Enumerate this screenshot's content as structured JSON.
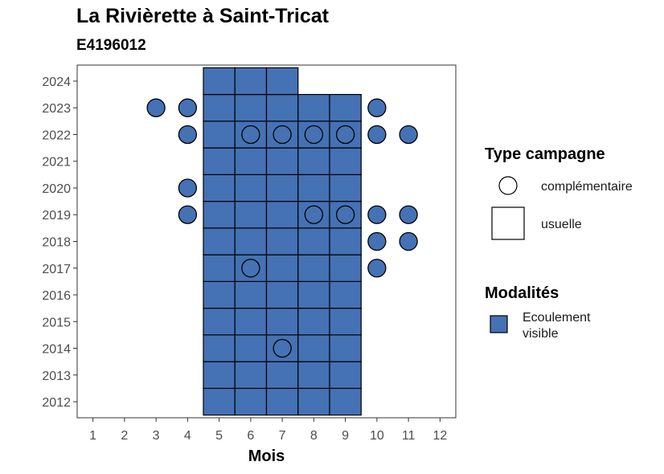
{
  "chart_data": {
    "type": "heatmap",
    "title": "La Rivièrette à Saint-Tricat",
    "subtitle": "E4196012",
    "xlabel": "Mois",
    "ylabel": "",
    "x_ticks": [
      1,
      2,
      3,
      4,
      5,
      6,
      7,
      8,
      9,
      10,
      11,
      12
    ],
    "y_ticks": [
      2012,
      2013,
      2014,
      2015,
      2016,
      2017,
      2018,
      2019,
      2020,
      2021,
      2022,
      2023,
      2024
    ],
    "xlim": [
      0.5,
      12.5
    ],
    "ylim": [
      2011.4,
      2024.6
    ],
    "color_fill": "#4472b4",
    "usuelle": [
      {
        "year": 2012,
        "months": [
          5,
          6,
          7,
          8,
          9
        ]
      },
      {
        "year": 2013,
        "months": [
          5,
          6,
          7,
          8,
          9
        ]
      },
      {
        "year": 2014,
        "months": [
          5,
          6,
          7,
          8,
          9
        ]
      },
      {
        "year": 2015,
        "months": [
          5,
          6,
          7,
          8,
          9
        ]
      },
      {
        "year": 2016,
        "months": [
          5,
          6,
          7,
          8,
          9
        ]
      },
      {
        "year": 2017,
        "months": [
          5,
          6,
          7,
          8,
          9
        ]
      },
      {
        "year": 2018,
        "months": [
          5,
          6,
          7,
          8,
          9
        ]
      },
      {
        "year": 2019,
        "months": [
          5,
          6,
          7,
          8,
          9
        ]
      },
      {
        "year": 2020,
        "months": [
          5,
          6,
          7,
          8,
          9
        ]
      },
      {
        "year": 2021,
        "months": [
          5,
          6,
          7,
          8,
          9
        ]
      },
      {
        "year": 2022,
        "months": [
          5,
          6,
          7,
          8,
          9
        ]
      },
      {
        "year": 2023,
        "months": [
          5,
          6,
          7,
          8,
          9
        ]
      },
      {
        "year": 2024,
        "months": [
          5,
          6,
          7
        ]
      }
    ],
    "complementaire": [
      {
        "year": 2023,
        "month": 3,
        "filled": true
      },
      {
        "year": 2023,
        "month": 4,
        "filled": true
      },
      {
        "year": 2023,
        "month": 10,
        "filled": true
      },
      {
        "year": 2022,
        "month": 4,
        "filled": true
      },
      {
        "year": 2022,
        "month": 6,
        "filled": false
      },
      {
        "year": 2022,
        "month": 7,
        "filled": false
      },
      {
        "year": 2022,
        "month": 8,
        "filled": false
      },
      {
        "year": 2022,
        "month": 9,
        "filled": false
      },
      {
        "year": 2022,
        "month": 10,
        "filled": true
      },
      {
        "year": 2022,
        "month": 11,
        "filled": true
      },
      {
        "year": 2020,
        "month": 4,
        "filled": true
      },
      {
        "year": 2019,
        "month": 4,
        "filled": true
      },
      {
        "year": 2019,
        "month": 8,
        "filled": false
      },
      {
        "year": 2019,
        "month": 9,
        "filled": false
      },
      {
        "year": 2019,
        "month": 10,
        "filled": true
      },
      {
        "year": 2019,
        "month": 11,
        "filled": true
      },
      {
        "year": 2018,
        "month": 10,
        "filled": true
      },
      {
        "year": 2018,
        "month": 11,
        "filled": true
      },
      {
        "year": 2017,
        "month": 6,
        "filled": false
      },
      {
        "year": 2017,
        "month": 10,
        "filled": true
      },
      {
        "year": 2014,
        "month": 7,
        "filled": false
      }
    ],
    "legend": {
      "type_title": "Type campagne",
      "type_items": [
        "complémentaire",
        "usuelle"
      ],
      "modalites_title": "Modalités",
      "modalites_items": [
        {
          "label_line1": "Ecoulement",
          "label_line2": "visible",
          "color": "#4472b4"
        }
      ],
      "placement": "right"
    }
  }
}
